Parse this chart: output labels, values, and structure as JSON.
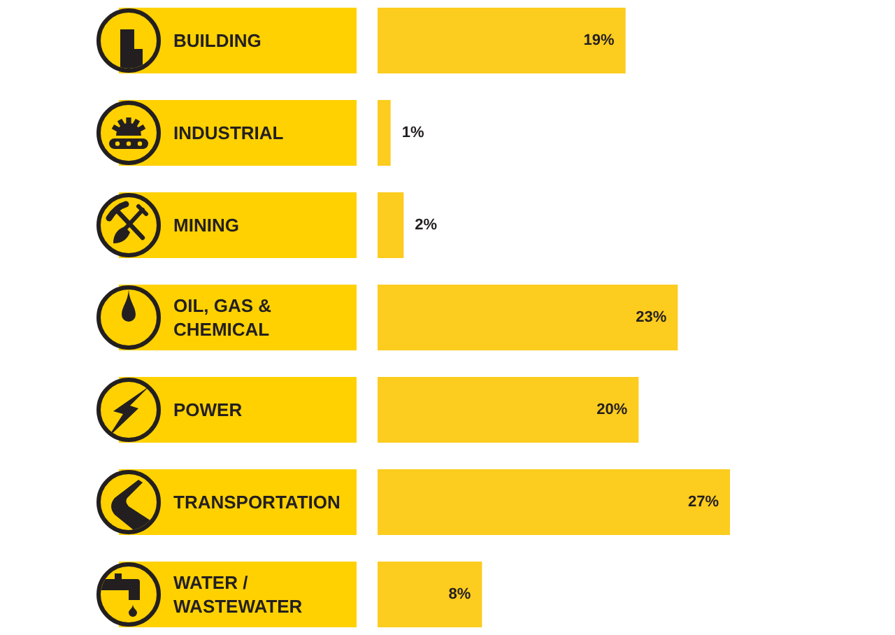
{
  "chart_data": {
    "type": "bar",
    "orientation": "horizontal",
    "categories": [
      "BUILDING",
      "INDUSTRIAL",
      "MINING",
      "OIL, GAS & CHEMICAL",
      "POWER",
      "TRANSPORTATION",
      "WATER / WASTEWATER"
    ],
    "values": [
      19,
      1,
      2,
      23,
      20,
      27,
      8
    ],
    "color": "#fccc1e",
    "value_labels": [
      "19%",
      "1%",
      "2%",
      "23%",
      "20%",
      "27%",
      "8%"
    ]
  }
}
